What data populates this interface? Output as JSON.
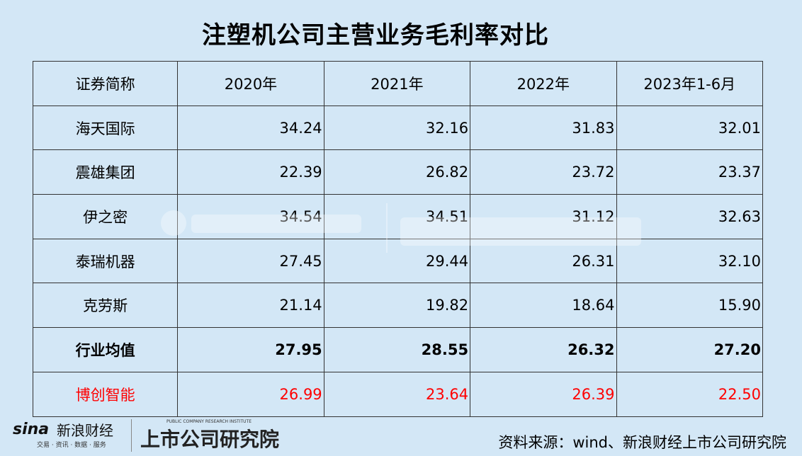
{
  "title": "注塑机公司主营业务毛利率对比",
  "chart_data": {
    "type": "table",
    "title": "注塑机公司主营业务毛利率对比",
    "columns": [
      "证券简称",
      "2020年",
      "2021年",
      "2022年",
      "2023年1-6月"
    ],
    "rows": [
      {
        "name": "海天国际",
        "values": [
          "34.24",
          "32.16",
          "31.83",
          "32.01"
        ]
      },
      {
        "name": "震雄集团",
        "values": [
          "22.39",
          "26.82",
          "23.72",
          "23.37"
        ]
      },
      {
        "name": "伊之密",
        "values": [
          "34.54",
          "34.51",
          "31.12",
          "32.63"
        ]
      },
      {
        "name": "泰瑞机器",
        "values": [
          "27.45",
          "29.44",
          "26.31",
          "32.10"
        ]
      },
      {
        "name": "克劳斯",
        "values": [
          "21.14",
          "19.82",
          "18.64",
          "15.90"
        ]
      },
      {
        "name": "行业均值",
        "values": [
          "27.95",
          "28.55",
          "26.32",
          "27.20"
        ],
        "bold": true
      },
      {
        "name": "博创智能",
        "values": [
          "26.99",
          "23.64",
          "26.39",
          "22.50"
        ],
        "color": "#ff0000"
      }
    ]
  },
  "watermark": {
    "brand": "sina新浪财经",
    "sub": "交易 · 资讯 · 数据 · 服务",
    "institute": "上市公司研究院",
    "institute_en": "PUBLIC COMPANY RESEARCH INSTITUTE"
  },
  "footer": {
    "logo_sina": "sina",
    "logo_cn": "新浪财经",
    "logo_sub": "交易 · 资讯 · 数据 · 服务",
    "institute": "上市公司研究院",
    "institute_en": "PUBLIC COMPANY RESEARCH INSTITUTE",
    "source": "资料来源：wind、新浪财经上市公司研究院"
  },
  "colors": {
    "background": "#d3e7f6",
    "highlight": "#ff0000"
  }
}
